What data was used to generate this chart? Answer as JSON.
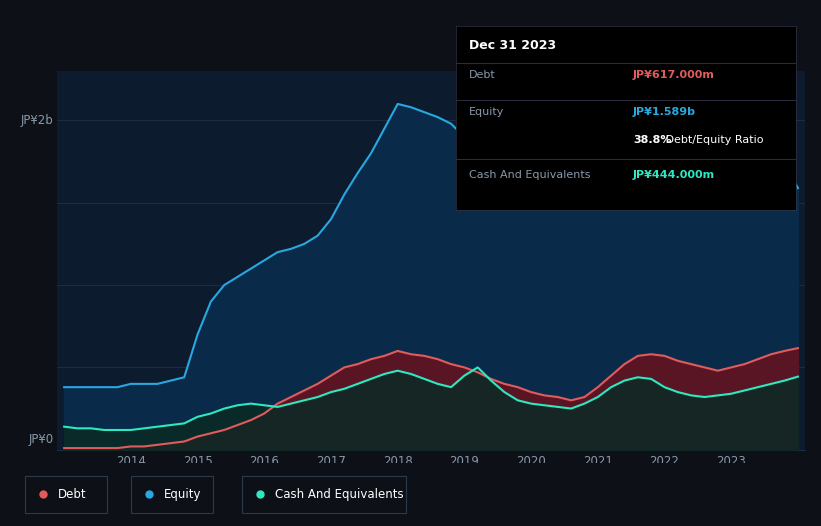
{
  "bg_color": "#0d1117",
  "plot_bg_color": "#0d1b2e",
  "grid_color": "#1e2d40",
  "debt_color": "#e05c5c",
  "equity_color": "#29a8e0",
  "cash_color": "#2ee8c0",
  "debt_fill_color": "#5a1525",
  "equity_fill_color": "#0a2a4a",
  "cash_fill_color": "#0a2a25",
  "legend_labels": [
    "Debt",
    "Equity",
    "Cash And Equivalents"
  ],
  "tooltip": {
    "date": "Dec 31 2023",
    "debt_label": "Debt",
    "debt_value": "JP¥617.000m",
    "equity_label": "Equity",
    "equity_value": "JP¥1.589b",
    "ratio_value": "38.8%",
    "ratio_label": " Debt/Equity Ratio",
    "cash_label": "Cash And Equivalents",
    "cash_value": "JP¥444.000m"
  },
  "years": [
    2013.0,
    2013.2,
    2013.4,
    2013.6,
    2013.8,
    2014.0,
    2014.2,
    2014.4,
    2014.6,
    2014.8,
    2015.0,
    2015.2,
    2015.4,
    2015.6,
    2015.8,
    2016.0,
    2016.2,
    2016.4,
    2016.6,
    2016.8,
    2017.0,
    2017.2,
    2017.4,
    2017.6,
    2017.8,
    2018.0,
    2018.2,
    2018.4,
    2018.6,
    2018.8,
    2019.0,
    2019.2,
    2019.4,
    2019.6,
    2019.8,
    2020.0,
    2020.2,
    2020.4,
    2020.6,
    2020.8,
    2021.0,
    2021.2,
    2021.4,
    2021.6,
    2021.8,
    2022.0,
    2022.2,
    2022.4,
    2022.6,
    2022.8,
    2023.0,
    2023.2,
    2023.4,
    2023.6,
    2023.8,
    2024.0
  ],
  "equity": [
    0.38,
    0.38,
    0.38,
    0.38,
    0.38,
    0.4,
    0.4,
    0.4,
    0.42,
    0.44,
    0.7,
    0.9,
    1.0,
    1.05,
    1.1,
    1.15,
    1.2,
    1.22,
    1.25,
    1.3,
    1.4,
    1.55,
    1.68,
    1.8,
    1.95,
    2.1,
    2.08,
    2.05,
    2.02,
    1.98,
    1.9,
    1.82,
    1.75,
    1.7,
    1.65,
    1.58,
    1.55,
    1.52,
    1.5,
    1.48,
    1.5,
    1.6,
    1.72,
    1.8,
    1.85,
    1.75,
    1.72,
    1.68,
    1.65,
    1.62,
    1.6,
    1.65,
    1.7,
    1.72,
    1.74,
    1.589
  ],
  "debt": [
    0.01,
    0.01,
    0.01,
    0.01,
    0.01,
    0.02,
    0.02,
    0.03,
    0.04,
    0.05,
    0.08,
    0.1,
    0.12,
    0.15,
    0.18,
    0.22,
    0.28,
    0.32,
    0.36,
    0.4,
    0.45,
    0.5,
    0.52,
    0.55,
    0.57,
    0.6,
    0.58,
    0.57,
    0.55,
    0.52,
    0.5,
    0.47,
    0.43,
    0.4,
    0.38,
    0.35,
    0.33,
    0.32,
    0.3,
    0.32,
    0.38,
    0.45,
    0.52,
    0.57,
    0.58,
    0.57,
    0.54,
    0.52,
    0.5,
    0.48,
    0.5,
    0.52,
    0.55,
    0.58,
    0.6,
    0.617
  ],
  "cash": [
    0.14,
    0.13,
    0.13,
    0.12,
    0.12,
    0.12,
    0.13,
    0.14,
    0.15,
    0.16,
    0.2,
    0.22,
    0.25,
    0.27,
    0.28,
    0.27,
    0.26,
    0.28,
    0.3,
    0.32,
    0.35,
    0.37,
    0.4,
    0.43,
    0.46,
    0.48,
    0.46,
    0.43,
    0.4,
    0.38,
    0.45,
    0.5,
    0.42,
    0.35,
    0.3,
    0.28,
    0.27,
    0.26,
    0.25,
    0.28,
    0.32,
    0.38,
    0.42,
    0.44,
    0.43,
    0.38,
    0.35,
    0.33,
    0.32,
    0.33,
    0.34,
    0.36,
    0.38,
    0.4,
    0.42,
    0.444
  ],
  "xlim": [
    2012.9,
    2024.1
  ],
  "ylim": [
    0.0,
    2.3
  ],
  "xticks": [
    2014,
    2015,
    2016,
    2017,
    2018,
    2019,
    2020,
    2021,
    2022,
    2023
  ],
  "ytick_top_label": "JP¥2b",
  "ytick_bottom_label": "JP¥0"
}
